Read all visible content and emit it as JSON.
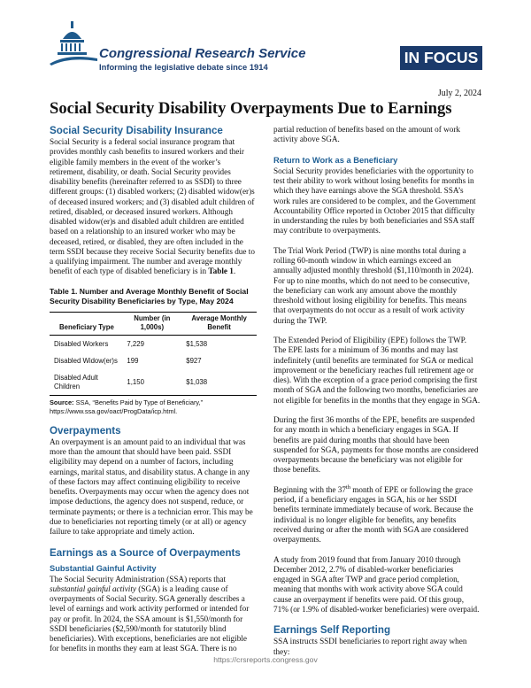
{
  "header": {
    "organization": "Congressional Research Service",
    "tagline": "Informing the legislative debate since 1914",
    "badge": "IN FOCUS",
    "date": "July 2, 2024"
  },
  "title": "Social Security Disability Overpayments Due to Earnings",
  "ssdi": {
    "heading": "Social Security Disability Insurance",
    "paragraph": [
      "Social Security is a federal social insurance program that provides monthly cash benefits to insured workers and their eligible family members in the event of the worker’s retirement, disability, or death. Social Security provides disability benefits (hereinafter referred to as SSDI) to three different groups: (1) disabled workers; (2) disabled widow(er)s of deceased insured workers; and (3) disabled adult children of retired, disabled, or deceased insured workers. Although disabled widow(er)s and disabled adult children are entitled based on a relationship to an insured worker who may be deceased, retired, or disabled, they are often included in the term SSDI because they receive Social Security benefits due to a qualifying impairment. The number and average monthly benefit of each type of disabled beneficiary is in ",
      "Table 1",
      "."
    ]
  },
  "table": {
    "title": "Table 1. Number and Average Monthly Benefit of Social Security Disability Beneficiaries by Type, May 2024",
    "headers": [
      "Beneficiary Type",
      "Number (in 1,000s)",
      "Average Monthly Benefit"
    ],
    "rows": [
      [
        "Disabled Workers",
        "7,229",
        "$1,538"
      ],
      [
        "Disabled Widow(er)s",
        "199",
        "$927"
      ],
      [
        "Disabled Adult Children",
        "1,150",
        "$1,038"
      ]
    ],
    "source": [
      "Source:",
      " SSA, “Benefits Paid by Type of Beneficiary,” https://www.ssa.gov/oact/ProgData/icp.html."
    ]
  },
  "overpayments": {
    "heading": "Overpayments",
    "paragraph": "An overpayment is an amount paid to an individual that was more than the amount that should have been paid. SSDI eligibility may depend on a number of factors, including earnings, marital status, and disability status. A change in any of these factors may affect continuing eligibility to receive benefits. Overpayments may occur when the agency does not impose deductions, the agency does not suspend, reduce, or terminate payments; or there is a technician error. This may be due to beneficiaries not reporting timely (or at all) or agency failure to take appropriate and timely action."
  },
  "earnings": {
    "heading": "Earnings as a Source of Overpayments",
    "sga_heading": "Substantial Gainful Activity",
    "sga_paragraph": [
      "The Social Security Administration (SSA) reports that ",
      "substantial gainful activity",
      " (SGA) is a leading cause of overpayments of Social Security. SGA generally describes a level of earnings and work activity performed or intended for pay or profit. In 2024, the SSA amount is $1,550/month for SSDI beneficiaries ($2,590/month for statutorily blind beneficiaries). With exceptions, beneficiaries are not eligible for benefits in months they earn at least SGA. There is no",
      " partial reduction of benefits based on the amount of work activity above SGA."
    ],
    "rtw_heading": "Return to Work as a Beneficiary",
    "rtw_paragraphs": [
      "Social Security provides beneficiaries with the opportunity to test their ability to work without losing benefits for months in which they have earnings above the SGA threshold. SSA’s work rules are considered to be complex, and the Government Accountability Office reported in October 2015 that difficulty in understanding the rules by both beneficiaries and SSA staff may contribute to overpayments.",
      "The Trial Work Period (TWP) is nine months total during a rolling 60-month window in which earnings exceed an annually adjusted monthly threshold ($1,110/month in 2024). For up to nine months, which do not need to be consecutive, the beneficiary can work any amount above the monthly threshold without losing eligibility for benefits. This means that overpayments do not occur as a result of work activity during the TWP.",
      "The Extended Period of Eligibility (EPE) follows the TWP. The EPE lasts for a minimum of 36 months and may last indefinitely (until benefits are terminated for SGA or medical improvement or the beneficiary reaches full retirement age or dies). With the exception of a grace period comprising the first month of SGA and the following two months, beneficiaries are not eligible for benefits in the months that they engage in SGA.",
      "During the first 36 months of the EPE, benefits are suspended for any month in which a beneficiary engages in SGA. If benefits are paid during months that should have been suspended for SGA, payments for those months are considered overpayments because the beneficiary was not eligible for those benefits."
    ],
    "termination_paragraph": [
      "Beginning with the 37",
      "th",
      " month of EPE or following the grace period, if a beneficiary engages in SGA, his or her SSDI benefits terminate immediately because of work. Because the individual is no longer eligible for benefits, any benefits received during or after the month with SGA are considered overpayments."
    ],
    "study_paragraph": "A study from 2019 found that from January 2010 through December 2012, 2.7% of disabled-worker beneficiaries engaged in SGA after TWP and grace period completion, meaning that months with work activity above SGA could cause an overpayment if benefits were paid. Of this group, 71% (or 1.9% of disabled-worker beneficiaries) were overpaid."
  },
  "self_reporting": {
    "heading": "Earnings Self Reporting",
    "paragraph": "SSA instructs SSDI beneficiaries to report right away when they:"
  },
  "footer": {
    "url": "https://crsreports.congress.gov"
  }
}
